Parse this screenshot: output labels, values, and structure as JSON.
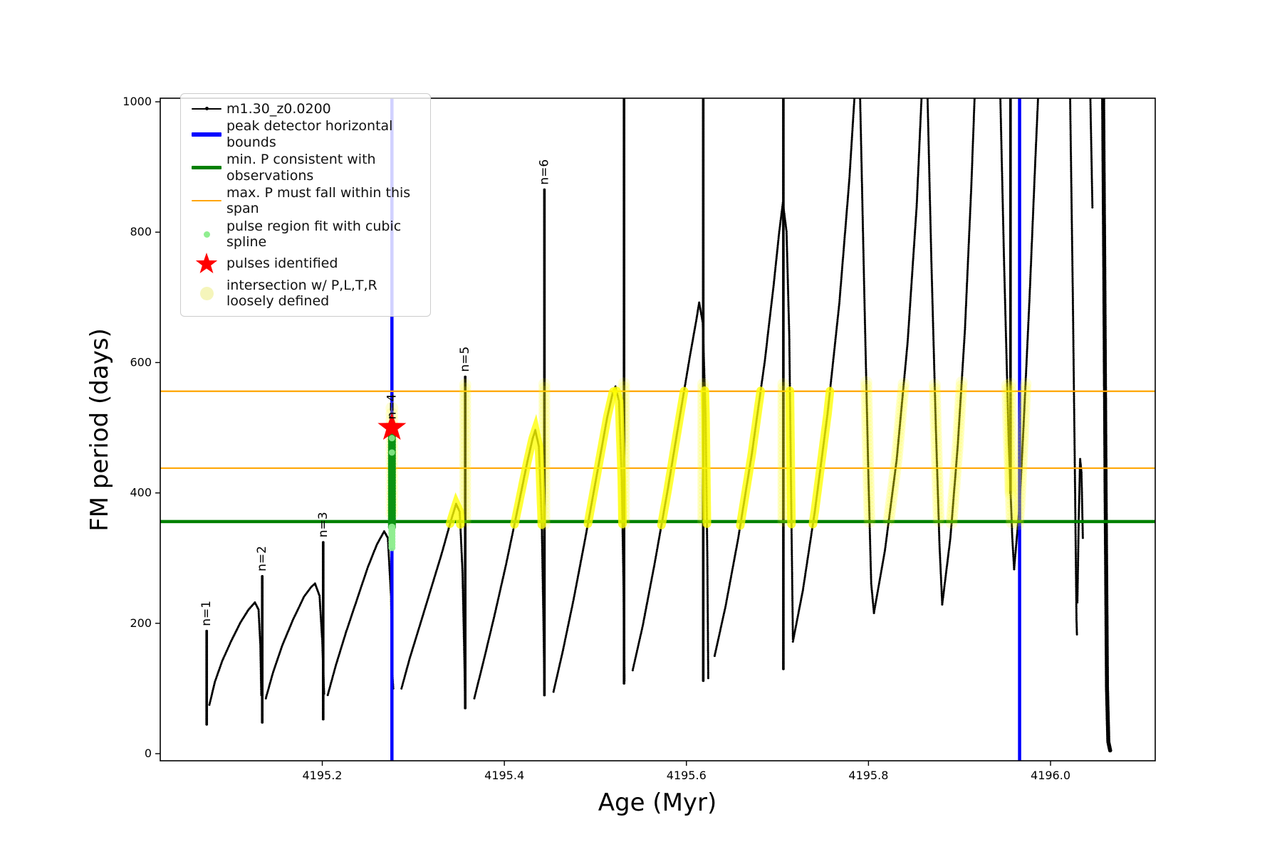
{
  "figure": {
    "xlabel": "Age (Myr)",
    "ylabel": "FM period (days)"
  },
  "legend": {
    "entries": [
      {
        "label": "m1.30_z0.0200",
        "marker": "line-dot",
        "color": "#000000"
      },
      {
        "label": "peak detector horizontal bounds",
        "marker": "thick-line",
        "color": "#0000ff"
      },
      {
        "label": "min. P consistent with observations",
        "marker": "thick-line",
        "color": "#008000"
      },
      {
        "label": "max. P must fall within this span",
        "marker": "line",
        "color": "#ffa500"
      },
      {
        "label": "pulse region fit with cubic spline",
        "marker": "dot-small",
        "color": "#90ee90"
      },
      {
        "label": "pulses identified",
        "marker": "star",
        "color": "#ff0000"
      },
      {
        "label": "intersection w/ P,L,T,R\nloosely defined",
        "marker": "dot-large",
        "color": "#f5f5bb"
      }
    ]
  },
  "chart_data": {
    "type": "line",
    "title": "",
    "xlabel": "Age (Myr)",
    "ylabel": "FM period (days)",
    "xlim": [
      4195.022,
      4196.115
    ],
    "ylim": [
      -10.9,
      1005.5
    ],
    "grid": false,
    "xticks": [
      {
        "label": "4195.2",
        "v": 4195.2
      },
      {
        "label": "4195.4",
        "v": 4195.4
      },
      {
        "label": "4195.6",
        "v": 4195.6
      },
      {
        "label": "4195.8",
        "v": 4195.8
      },
      {
        "label": "4196.0",
        "v": 4196.0
      }
    ],
    "yticks": [
      {
        "label": "0",
        "v": 0
      },
      {
        "label": "200",
        "v": 200
      },
      {
        "label": "400",
        "v": 400
      },
      {
        "label": "600",
        "v": 600
      },
      {
        "label": "800",
        "v": 800
      },
      {
        "label": "1000",
        "v": 1000
      }
    ],
    "colors": {
      "series": "#000000",
      "peak_bounds": "#0000ff",
      "min_p": "#008000",
      "max_p_span": "#ffa500",
      "bright_highlight": "#ffff00",
      "pale_highlight": "#ffff00",
      "spline_dots": "#0c9212",
      "spline_dots_light": "#90ee90",
      "pulse_star": "#ff0000"
    },
    "reference_lines": {
      "vertical_blue": [
        4195.2765,
        4195.966
      ],
      "horizontal_orange": [
        556,
        438
      ],
      "horizontal_green": [
        356
      ]
    },
    "pulse_star": {
      "x": 4195.2765,
      "y": 500
    },
    "spline_column": {
      "x": 4195.2765,
      "from": 348,
      "to": 505,
      "light_segments": [
        [
          316,
          350
        ]
      ],
      "light_dots": [
        462,
        484
      ]
    },
    "pale_column_at_star": {
      "x": 4195.2765,
      "from": 368,
      "to": 530
    },
    "highlight_band": {
      "bright_min": 350,
      "bright_max": 558,
      "pale_min": 352,
      "pale_max": 570
    },
    "peak_labels": [
      {
        "text": "n=1",
        "x": 4195.073,
        "y": 188
      },
      {
        "text": "n=2",
        "x": 4195.134,
        "y": 272
      },
      {
        "text": "n=3",
        "x": 4195.201,
        "y": 324
      },
      {
        "text": "n=4",
        "x": 4195.2765,
        "y": 505
      },
      {
        "text": "n=5",
        "x": 4195.357,
        "y": 578
      },
      {
        "text": "n=6",
        "x": 4195.444,
        "y": 865
      }
    ],
    "series": {
      "name": "m1.30_z0.0200",
      "segments": [
        {
          "kind": "spike",
          "hl": "none",
          "pts": [
            [
              4195.073,
              45
            ],
            [
              4195.073,
              188
            ]
          ]
        },
        {
          "kind": "dots",
          "hl": "none",
          "pts": [
            [
              4195.076,
              75
            ],
            [
              4195.082,
              110
            ],
            [
              4195.09,
              142
            ],
            [
              4195.1,
              173
            ],
            [
              4195.11,
              201
            ],
            [
              4195.119,
              221
            ],
            [
              4195.126,
              232
            ],
            [
              4195.13,
              221
            ],
            [
              4195.132,
              165
            ],
            [
              4195.133,
              90
            ]
          ]
        },
        {
          "kind": "spike",
          "hl": "none",
          "pts": [
            [
              4195.134,
              48
            ],
            [
              4195.134,
              272
            ]
          ]
        },
        {
          "kind": "dots",
          "hl": "none",
          "pts": [
            [
              4195.138,
              85
            ],
            [
              4195.146,
              125
            ],
            [
              4195.156,
              166
            ],
            [
              4195.168,
              206
            ],
            [
              4195.18,
              241
            ],
            [
              4195.188,
              256
            ],
            [
              4195.192,
              261
            ],
            [
              4195.197,
              242
            ],
            [
              4195.2,
              172
            ],
            [
              4195.202,
              92
            ]
          ]
        },
        {
          "kind": "spike",
          "hl": "none",
          "pts": [
            [
              4195.201,
              53
            ],
            [
              4195.201,
              324
            ]
          ]
        },
        {
          "kind": "dots",
          "hl": "none",
          "pts": [
            [
              4195.206,
              90
            ],
            [
              4195.215,
              136
            ],
            [
              4195.226,
              186
            ],
            [
              4195.238,
              236
            ],
            [
              4195.25,
              286
            ],
            [
              4195.26,
              321
            ],
            [
              4195.268,
              341
            ],
            [
              4195.272,
              331
            ],
            [
              4195.2755,
              242
            ],
            [
              4195.277,
              122
            ],
            [
              4195.278,
              100
            ]
          ]
        },
        {
          "kind": "dots",
          "hl": "bright",
          "pts": [
            [
              4195.287,
              100
            ],
            [
              4195.296,
              146
            ],
            [
              4195.307,
              196
            ],
            [
              4195.319,
              251
            ],
            [
              4195.331,
              306
            ],
            [
              4195.341,
              356
            ],
            [
              4195.347,
              383
            ],
            [
              4195.351,
              371
            ],
            [
              4195.354,
              281
            ],
            [
              4195.356,
              152
            ],
            [
              4195.357,
              75
            ]
          ]
        },
        {
          "kind": "spike",
          "hl": "pale",
          "pts": [
            [
              4195.357,
              70
            ],
            [
              4195.357,
              578
            ]
          ]
        },
        {
          "kind": "dots",
          "hl": "bright",
          "pts": [
            [
              4195.367,
              85
            ],
            [
              4195.377,
              141
            ],
            [
              4195.389,
              211
            ],
            [
              4195.402,
              291
            ],
            [
              4195.414,
              371
            ],
            [
              4195.425,
              446
            ],
            [
              4195.431,
              483
            ],
            [
              4195.434,
              496
            ],
            [
              4195.438,
              471
            ],
            [
              4195.441,
              361
            ],
            [
              4195.443,
              201
            ],
            [
              4195.444,
              96
            ]
          ]
        },
        {
          "kind": "spike",
          "hl": "pale",
          "pts": [
            [
              4195.444,
              90
            ],
            [
              4195.444,
              865
            ]
          ]
        },
        {
          "kind": "dots",
          "hl": "bright",
          "pts": [
            [
              4195.454,
              95
            ],
            [
              4195.464,
              156
            ],
            [
              4195.476,
              236
            ],
            [
              4195.489,
              331
            ],
            [
              4195.502,
              431
            ],
            [
              4195.513,
              516
            ],
            [
              4195.519,
              553
            ],
            [
              4195.522,
              563
            ],
            [
              4195.526,
              541
            ],
            [
              4195.529,
              421
            ],
            [
              4195.531,
              251
            ],
            [
              4195.532,
              112
            ]
          ]
        },
        {
          "kind": "spike",
          "hl": "pale",
          "pts": [
            [
              4195.5315,
              108
            ],
            [
              4195.5315,
              1010
            ]
          ]
        },
        {
          "kind": "dots",
          "hl": "bright",
          "pts": [
            [
              4195.541,
              128
            ],
            [
              4195.552,
              196
            ],
            [
              4195.565,
              291
            ],
            [
              4195.579,
              401
            ],
            [
              4195.592,
              511
            ],
            [
              4195.604,
              611
            ],
            [
              4195.611,
              666
            ],
            [
              4195.614,
              692
            ],
            [
              4195.618,
              661
            ],
            [
              4195.621,
              521
            ],
            [
              4195.623,
              301
            ],
            [
              4195.624,
              116
            ]
          ]
        },
        {
          "kind": "spike",
          "hl": "pale",
          "pts": [
            [
              4195.6185,
              112
            ],
            [
              4195.6185,
              1010
            ]
          ]
        },
        {
          "kind": "dots",
          "hl": "bright",
          "pts": [
            [
              4195.631,
              150
            ],
            [
              4195.643,
              226
            ],
            [
              4195.657,
              331
            ],
            [
              4195.672,
              461
            ],
            [
              4195.686,
              601
            ],
            [
              4195.696,
              721
            ],
            [
              4195.702,
              801
            ],
            [
              4195.706,
              845
            ],
            [
              4195.71,
              801
            ],
            [
              4195.713,
              641
            ],
            [
              4195.715,
              401
            ],
            [
              4195.717,
              176
            ]
          ]
        },
        {
          "kind": "spike",
          "hl": "pale",
          "pts": [
            [
              4195.7065,
              130
            ],
            [
              4195.7065,
              1010
            ]
          ]
        },
        {
          "kind": "dots",
          "hl": "bright",
          "pts": [
            [
              4195.717,
              172
            ],
            [
              4195.728,
              251
            ],
            [
              4195.741,
              371
            ],
            [
              4195.755,
              521
            ],
            [
              4195.768,
              691
            ],
            [
              4195.779,
              881
            ],
            [
              4195.787,
              1060
            ]
          ]
        },
        {
          "kind": "dots",
          "hl": "pale",
          "pts": [
            [
              4195.79,
              1060
            ],
            [
              4195.7955,
              701
            ],
            [
              4195.8,
              421
            ],
            [
              4195.803,
              261
            ],
            [
              4195.806,
              216
            ]
          ]
        },
        {
          "kind": "dots",
          "hl": "pale",
          "pts": [
            [
              4195.806,
              216
            ],
            [
              4195.818,
              311
            ],
            [
              4195.831,
              451
            ],
            [
              4195.843,
              631
            ],
            [
              4195.853,
              841
            ],
            [
              4195.86,
              1060
            ]
          ]
        },
        {
          "kind": "dots",
          "hl": "pale",
          "pts": [
            [
              4195.864,
              1060
            ],
            [
              4195.869,
              761
            ],
            [
              4195.874,
              501
            ],
            [
              4195.878,
              321
            ],
            [
              4195.881,
              229
            ]
          ]
        },
        {
          "kind": "dots",
          "hl": "pale",
          "pts": [
            [
              4195.881,
              229
            ],
            [
              4195.89,
              331
            ],
            [
              4195.898,
              471
            ],
            [
              4195.906,
              651
            ],
            [
              4195.913,
              871
            ],
            [
              4195.918,
              1060
            ]
          ]
        },
        {
          "kind": "dots",
          "hl": "pale",
          "pts": [
            [
              4195.944,
              1060
            ],
            [
              4195.949,
              751
            ],
            [
              4195.954,
              481
            ],
            [
              4195.958,
              331
            ],
            [
              4195.96,
              283
            ]
          ]
        },
        {
          "kind": "spike",
          "hl": "pale",
          "pts": [
            [
              4195.956,
              400
            ],
            [
              4195.956,
              1010
            ]
          ]
        },
        {
          "kind": "dots",
          "hl": "pale",
          "pts": [
            [
              4195.96,
              283
            ],
            [
              4195.966,
              381
            ],
            [
              4195.971,
              521
            ],
            [
              4195.977,
              701
            ],
            [
              4195.983,
              901
            ],
            [
              4195.988,
              1060
            ]
          ]
        },
        {
          "kind": "dots",
          "hl": "none",
          "pts": [
            [
              4196.021,
              1060
            ],
            [
              4196.0245,
              701
            ],
            [
              4196.027,
              401
            ],
            [
              4196.0285,
              206
            ],
            [
              4196.029,
              183
            ]
          ]
        },
        {
          "kind": "dots",
          "hl": "none",
          "pts": [
            [
              4196.0295,
              232
            ],
            [
              4196.031,
              361
            ],
            [
              4196.0325,
              452
            ],
            [
              4196.034,
              431
            ],
            [
              4196.0355,
              331
            ]
          ]
        },
        {
          "kind": "dots",
          "hl": "none",
          "pts": [
            [
              4196.043,
              1060
            ],
            [
              4196.0445,
              951
            ],
            [
              4196.046,
              838
            ]
          ]
        },
        {
          "kind": "thick",
          "hl": "none",
          "pts": [
            [
              4196.0575,
              1060
            ],
            [
              4196.059,
              751
            ],
            [
              4196.0605,
              401
            ],
            [
              4196.062,
              101
            ],
            [
              4196.0635,
              18
            ],
            [
              4196.0655,
              5
            ]
          ]
        }
      ]
    }
  }
}
